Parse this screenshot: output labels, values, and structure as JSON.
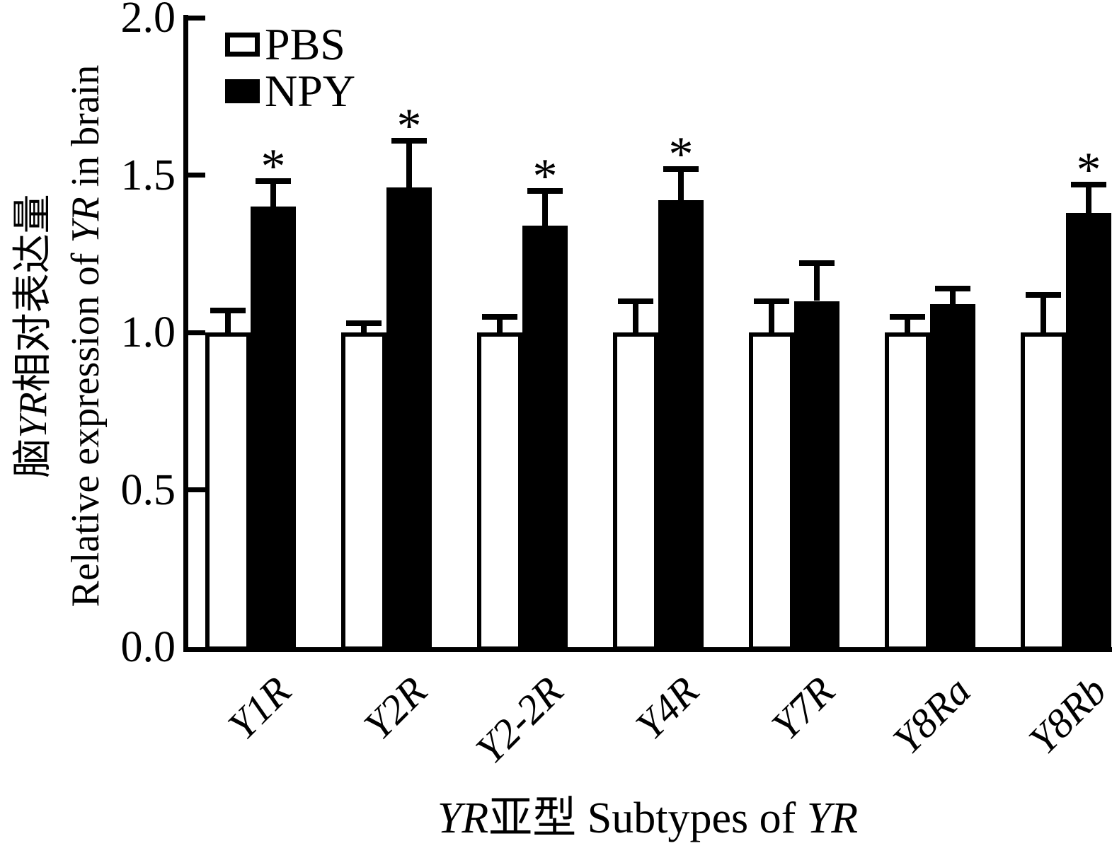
{
  "chart_data": {
    "type": "bar",
    "title": "",
    "categories": [
      "Y1R",
      "Y2R",
      "Y2-2R",
      "Y4R",
      "Y7R",
      "Y8Ra",
      "Y8Rb"
    ],
    "series": [
      {
        "name": "PBS",
        "fill": "#ffffff",
        "values": [
          1.0,
          1.0,
          1.0,
          1.0,
          1.0,
          1.0,
          1.0
        ],
        "errors": [
          0.07,
          0.03,
          0.05,
          0.1,
          0.1,
          0.05,
          0.12
        ],
        "significant": [
          false,
          false,
          false,
          false,
          false,
          false,
          false
        ]
      },
      {
        "name": "NPY",
        "fill": "#000000",
        "values": [
          1.4,
          1.46,
          1.34,
          1.42,
          1.1,
          1.09,
          1.38
        ],
        "errors": [
          0.08,
          0.15,
          0.11,
          0.1,
          0.12,
          0.05,
          0.09
        ],
        "significant": [
          true,
          true,
          true,
          true,
          false,
          false,
          true
        ]
      }
    ],
    "significance_marker": "*",
    "yticks": [
      "0.0",
      "0.5",
      "1.0",
      "1.5",
      "2.0"
    ],
    "ytick_values": [
      0,
      0.5,
      1.0,
      1.5,
      2.0
    ],
    "ylim": [
      0,
      2.0
    ],
    "grid": "off",
    "legend_position": "top-left",
    "axis_color": "#000000",
    "ylabel_lines": [
      [
        {
          "text": "脑",
          "italic": false
        },
        {
          "text": "YR",
          "italic": true
        },
        {
          "text": "相对表达量",
          "italic": false
        }
      ],
      [
        {
          "text": "Relative expression of ",
          "italic": false
        },
        {
          "text": "YR",
          "italic": true
        },
        {
          "text": " in brain",
          "italic": false
        }
      ]
    ],
    "xlabel_parts": [
      {
        "text": "YR",
        "italic": true
      },
      {
        "text": "亚型  Subtypes of ",
        "italic": false
      },
      {
        "text": "YR",
        "italic": true
      }
    ]
  }
}
